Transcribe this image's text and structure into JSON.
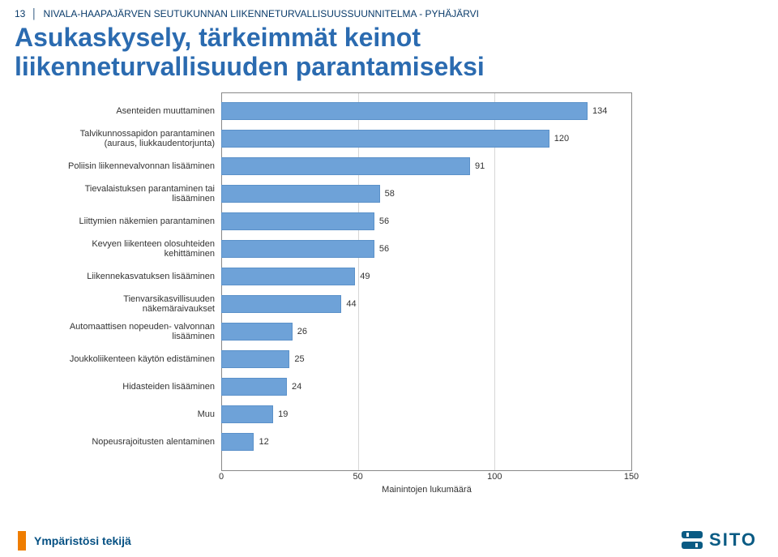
{
  "header": {
    "page_number": "13",
    "doc_title": "NIVALA-HAAPAJÄRVEN SEUTUKUNNAN LIIKENNETURVALLISUUSSUUNNITELMA - PYHÄJÄRVI"
  },
  "title_line1": "Asukaskysely, tärkeimmät keinot",
  "title_line2": "liikenneturvallisuuden parantamiseksi",
  "chart": {
    "type": "bar-horizontal",
    "xlim": [
      0,
      150
    ],
    "xticks": [
      0,
      50,
      100,
      150
    ],
    "xlabel": "Mainintojen lukumäärä",
    "bar_color": "#6ea2d8",
    "bar_border": "#5b91c9",
    "grid_color": "#d7d7d7",
    "label_fontsize": 11,
    "items": [
      {
        "label": "Asenteiden muuttaminen",
        "value": 134
      },
      {
        "label": "Talvikunnossapidon parantaminen (auraus, liukkaudentorjunta)",
        "value": 120
      },
      {
        "label": "Poliisin liikennevalvonnan lisääminen",
        "value": 91
      },
      {
        "label": "Tievalaistuksen parantaminen tai lisääminen",
        "value": 58
      },
      {
        "label": "Liittymien näkemien parantaminen",
        "value": 56
      },
      {
        "label": "Kevyen liikenteen olosuhteiden kehittäminen",
        "value": 56
      },
      {
        "label": "Liikennekasvatuksen lisääminen",
        "value": 49
      },
      {
        "label": "Tienvarsikasvillisuuden näkemäraivaukset",
        "value": 44
      },
      {
        "label": "Automaattisen nopeuden- valvonnan lisääminen",
        "value": 26
      },
      {
        "label": "Joukkoliikenteen käytön edistäminen",
        "value": 25
      },
      {
        "label": "Hidasteiden lisääminen",
        "value": 24
      },
      {
        "label": "Muu",
        "value": 19
      },
      {
        "label": "Nopeusrajoitusten alentaminen",
        "value": 12
      }
    ]
  },
  "footer": {
    "tagline": "Ympäristösi tekijä",
    "logo_text": "SITO",
    "accent_color": "#ef7d00",
    "brand_color": "#0a5b84"
  }
}
